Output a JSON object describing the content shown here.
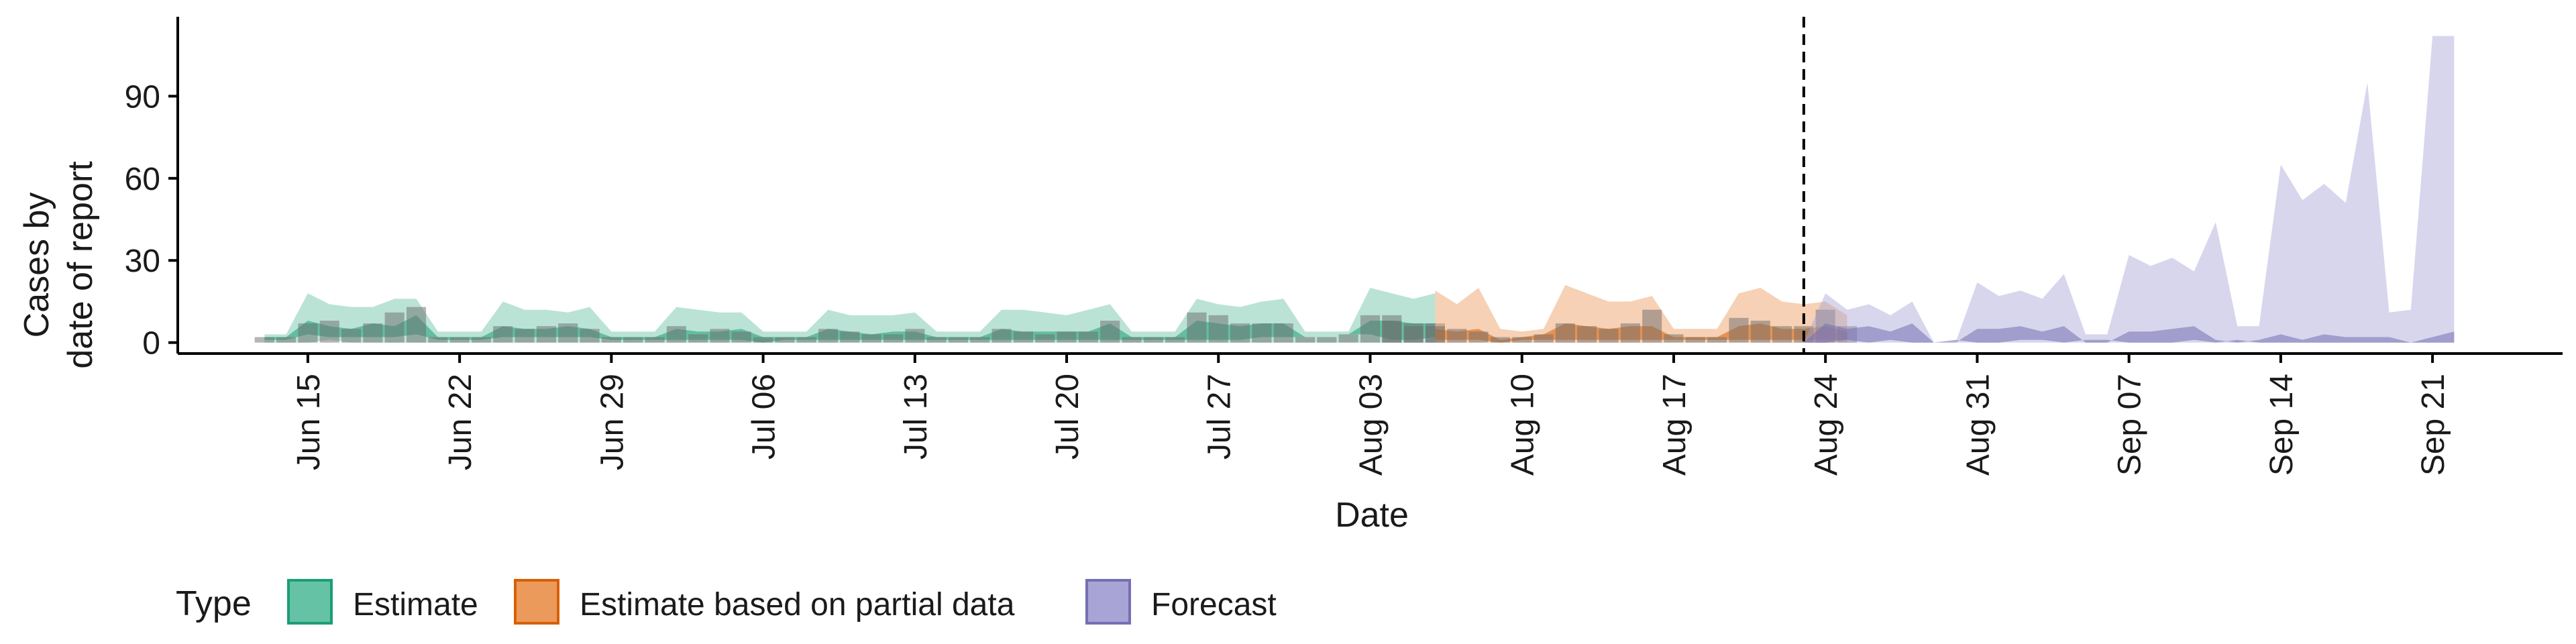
{
  "chart_data": {
    "type": "area",
    "title": "",
    "xlabel": "Date",
    "ylabel_lines": [
      "Cases by",
      "date of report"
    ],
    "x_range": [
      "2020-06-09",
      "2020-09-27"
    ],
    "ylim": [
      -4,
      119
    ],
    "y_ticks": [
      0,
      30,
      60,
      90
    ],
    "x_ticks": [
      "Jun 15",
      "Jun 22",
      "Jun 29",
      "Jul 06",
      "Jul 13",
      "Jul 20",
      "Jul 27",
      "Aug 03",
      "Aug 10",
      "Aug 17",
      "Aug 24",
      "Aug 31",
      "Sep 07",
      "Sep 14",
      "Sep 21"
    ],
    "x_tick_dates": [
      "2020-06-15",
      "2020-06-22",
      "2020-06-29",
      "2020-07-06",
      "2020-07-13",
      "2020-07-20",
      "2020-07-27",
      "2020-08-03",
      "2020-08-10",
      "2020-08-17",
      "2020-08-24",
      "2020-08-31",
      "2020-09-07",
      "2020-09-14",
      "2020-09-21"
    ],
    "forecast_start": "2020-08-23",
    "grid": false,
    "legend": {
      "title": "Type",
      "position": "bottom",
      "entries": [
        {
          "label": "Estimate",
          "fill": "#66c2a5",
          "stroke": "#1b9e77"
        },
        {
          "label": "Estimate based on partial data",
          "fill": "#ec9a5b",
          "stroke": "#d95f02"
        },
        {
          "label": "Forecast",
          "fill": "#a9a4d6",
          "stroke": "#7570b3"
        }
      ]
    },
    "series": [
      {
        "name": "Estimate",
        "color": "#1b9e77",
        "start_date": "2020-06-13",
        "lower": [
          0,
          0,
          0,
          1,
          0,
          0,
          0,
          0,
          0,
          0,
          0,
          0,
          0,
          0,
          0,
          0,
          0,
          0,
          0,
          0,
          0,
          0,
          0,
          0,
          0,
          0,
          0,
          0,
          0,
          0,
          0,
          0,
          0,
          0,
          0,
          0,
          0,
          0,
          0,
          0,
          0,
          0,
          0,
          0,
          0,
          0,
          0,
          0,
          0,
          0,
          0,
          0,
          0,
          0,
          0
        ],
        "mid_lower": [
          1,
          1,
          3,
          2,
          2,
          2,
          2,
          3,
          1,
          1,
          1,
          2,
          2,
          2,
          2,
          2,
          1,
          1,
          1,
          1,
          1,
          1,
          1,
          0,
          1,
          1,
          1,
          1,
          1,
          1,
          1,
          1,
          1,
          1,
          1,
          1,
          1,
          1,
          1,
          1,
          1,
          1,
          1,
          1,
          1,
          1,
          2,
          2,
          2,
          2,
          3,
          3,
          1,
          1,
          2
        ],
        "mid_upper": [
          2,
          2,
          8,
          6,
          5,
          7,
          6,
          10,
          2,
          2,
          2,
          6,
          5,
          5,
          6,
          5,
          2,
          2,
          2,
          5,
          4,
          4,
          5,
          2,
          2,
          2,
          5,
          4,
          3,
          4,
          4,
          2,
          2,
          2,
          5,
          4,
          4,
          4,
          4,
          7,
          2,
          2,
          2,
          8,
          7,
          6,
          7,
          7,
          2,
          2,
          3,
          8,
          8,
          7,
          7
        ],
        "upper": [
          3,
          3,
          18,
          14,
          13,
          13,
          16,
          16,
          4,
          4,
          4,
          15,
          12,
          12,
          11,
          13,
          4,
          4,
          4,
          13,
          12,
          11,
          11,
          4,
          4,
          4,
          12,
          10,
          10,
          10,
          11,
          4,
          4,
          4,
          12,
          12,
          11,
          10,
          12,
          14,
          4,
          4,
          4,
          16,
          14,
          13,
          15,
          16,
          4,
          4,
          4,
          20,
          18,
          16,
          18
        ],
        "bars": [
          2,
          2,
          7,
          8,
          5,
          7,
          11,
          13,
          2,
          2,
          2,
          6,
          5,
          6,
          7,
          5,
          2,
          2,
          2,
          6,
          3,
          5,
          4,
          2,
          2,
          2,
          5,
          4,
          3,
          3,
          5,
          2,
          2,
          2,
          5,
          4,
          3,
          4,
          4,
          8,
          2,
          2,
          2,
          11,
          10,
          7,
          7,
          7,
          2,
          2,
          3,
          10,
          10,
          6,
          7
        ]
      },
      {
        "name": "Estimate based on partial data",
        "color": "#d95f02",
        "start_date": "2020-08-06",
        "lower": [
          0,
          0,
          0,
          0,
          0,
          0,
          0,
          0,
          0,
          0,
          0,
          0,
          0,
          0,
          0,
          0,
          0,
          0,
          0,
          0
        ],
        "mid_lower": [
          1,
          1,
          1,
          0,
          1,
          1,
          1,
          1,
          1,
          1,
          1,
          1,
          1,
          1,
          1,
          1,
          1,
          1,
          1,
          1
        ],
        "mid_upper": [
          5,
          4,
          5,
          1,
          2,
          3,
          7,
          6,
          5,
          6,
          6,
          2,
          2,
          2,
          6,
          7,
          5,
          5,
          6,
          4
        ],
        "upper": [
          19,
          14,
          20,
          5,
          4,
          5,
          21,
          18,
          15,
          15,
          17,
          5,
          5,
          5,
          18,
          20,
          15,
          14,
          15,
          10
        ],
        "bars": [
          6,
          5,
          4,
          2,
          2,
          3,
          7,
          6,
          5,
          7,
          12,
          3,
          2,
          2,
          9,
          8,
          6,
          6,
          12,
          6
        ]
      },
      {
        "name": "Forecast",
        "color": "#7570b3",
        "start_date": "2020-08-23",
        "lower": [
          0,
          0,
          0,
          0,
          0,
          0,
          0,
          0,
          0,
          0,
          0,
          0,
          0,
          0,
          0,
          0,
          0,
          0,
          0,
          0,
          0,
          0,
          0,
          0,
          0,
          0,
          0,
          0,
          0,
          0,
          0
        ],
        "mid_lower": [
          0,
          0,
          1,
          0,
          1,
          0,
          0,
          1,
          0,
          0,
          1,
          1,
          0,
          1,
          1,
          0,
          0,
          0,
          1,
          0,
          1,
          0,
          0,
          0,
          0,
          0,
          0,
          0,
          0,
          0,
          0
        ],
        "mid_upper": [
          0,
          7,
          5,
          6,
          4,
          7,
          0,
          0,
          5,
          5,
          6,
          4,
          6,
          0,
          0,
          4,
          4,
          5,
          6,
          1,
          0,
          1,
          3,
          1,
          3,
          2,
          2,
          2,
          0,
          2,
          4
        ],
        "upper": [
          0,
          18,
          12,
          14,
          10,
          15,
          0,
          0,
          22,
          17,
          19,
          16,
          25,
          3,
          3,
          32,
          28,
          31,
          26,
          44,
          6,
          6,
          65,
          52,
          58,
          51,
          95,
          11,
          12,
          112,
          112
        ]
      }
    ],
    "gap_marks": [
      {
        "date": "2020-08-04",
        "value": 8
      },
      {
        "date": "2020-08-05",
        "value": 7
      }
    ]
  }
}
